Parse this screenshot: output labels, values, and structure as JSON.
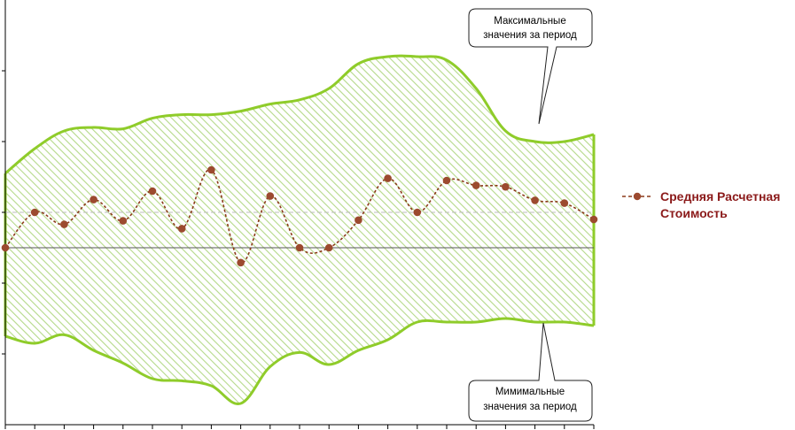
{
  "chart_data": {
    "type": "line",
    "title": "",
    "xlabel": "",
    "ylabel": "",
    "x": [
      0,
      1,
      2,
      3,
      4,
      5,
      6,
      7,
      8,
      9,
      10,
      11,
      12,
      13,
      14,
      15,
      16,
      17,
      18,
      19,
      20
    ],
    "ylim": [
      -2.5,
      3.5
    ],
    "y_ticks": [
      -1.5,
      -0.5,
      0.5,
      1.5,
      2.5
    ],
    "grid": false,
    "reference_lines": [
      {
        "value": 0,
        "style": "solid",
        "color": "#555555"
      },
      {
        "value": 0.5,
        "style": "dashed",
        "color": "#bbbbbb"
      }
    ],
    "band": {
      "upper_name": "Максимальные значения за период",
      "lower_name": "Мимимальные значения за период",
      "upper": [
        1.05,
        1.4,
        1.65,
        1.7,
        1.68,
        1.83,
        1.88,
        1.88,
        1.93,
        2.03,
        2.09,
        2.25,
        2.6,
        2.7,
        2.7,
        2.65,
        2.25,
        1.65,
        1.5,
        1.5,
        1.6
      ],
      "lower": [
        -1.25,
        -1.35,
        -1.23,
        -1.45,
        -1.63,
        -1.85,
        -1.88,
        -1.95,
        -2.2,
        -1.68,
        -1.48,
        -1.65,
        -1.45,
        -1.3,
        -1.05,
        -1.05,
        -1.05,
        -1.0,
        -1.05,
        -1.05,
        -1.1
      ],
      "fill_color": "#b5d98a",
      "edge_color": "#8fcc2a"
    },
    "series": [
      {
        "name": "Средняя Расчетная Стоимость",
        "color": "#8B3A1A",
        "marker_color": "#9C4A2F",
        "line_style": "dashed",
        "values": [
          0.0,
          0.5,
          0.33,
          0.68,
          0.38,
          0.8,
          0.27,
          1.1,
          -0.21,
          0.73,
          0.0,
          0.0,
          0.39,
          0.98,
          0.5,
          0.95,
          0.88,
          0.86,
          0.67,
          0.63,
          0.4
        ]
      }
    ],
    "legend": {
      "placement": "right",
      "line1": "Средняя Расчетная",
      "line2": "Стоимость"
    },
    "callouts": {
      "max_line1": "Максимальные",
      "max_line2": "значения за период",
      "min_line1": "Мимимальные",
      "min_line2": "значения за период"
    }
  }
}
